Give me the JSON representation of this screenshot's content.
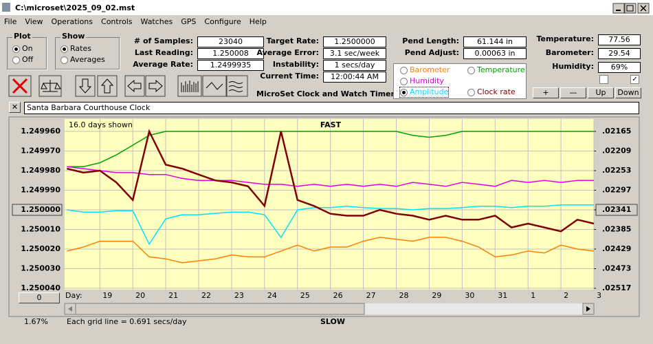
{
  "window": {
    "title": "C:\\microset\\2025_09_02.mst"
  },
  "menu": [
    "File",
    "View",
    "Operations",
    "Controls",
    "Watches",
    "GPS",
    "Configure",
    "Help"
  ],
  "plot_group": {
    "title": "Plot",
    "options": [
      "On",
      "Off"
    ],
    "selected": 0
  },
  "show_group": {
    "title": "Show",
    "options": [
      "Rates",
      "Averages"
    ],
    "selected": 0
  },
  "fields": [
    {
      "label": "# of Samples:",
      "value": "23040"
    },
    {
      "label": "Last Reading:",
      "value": "1.250008"
    },
    {
      "label": "Average Rate:",
      "value": "1.2499935"
    },
    {
      "label": "Target Rate:",
      "value": "1.2500000"
    },
    {
      "label": "Average Error:",
      "value": "3.1 sec/week"
    },
    {
      "label": "Instability:",
      "value": "1 secs/day"
    },
    {
      "label": "Current Time:",
      "value": "12:00:44 AM"
    },
    {
      "label": "Pend Length:",
      "value": "61.144 in"
    },
    {
      "label": "Pend Adjust:",
      "value": "0.00063 in"
    },
    {
      "label": "Temperature:",
      "value": "77.56"
    },
    {
      "label": "Barometer:",
      "value": "29.54"
    },
    {
      "label": "Humidity:",
      "value": "69%"
    }
  ],
  "app_name": "MicroSet Clock and Watch Timer",
  "buttons": [
    "+",
    "—",
    "Up",
    "Down"
  ],
  "description": "Santa Barbara Courthouse Clock",
  "chart_data": {
    "type": "line",
    "days_shown": "16.0 days shown",
    "top_label": "FAST",
    "bottom_label": "SLOW",
    "x_label": "Day:",
    "percent": "1.67%",
    "grid_note": "Each grid line = 0.691 secs/day",
    "offset_button": "0",
    "selected_series": 3,
    "grid": true,
    "x": [
      18,
      18.5,
      19,
      19.5,
      20,
      20.5,
      21,
      21.5,
      22,
      22.5,
      23,
      23.5,
      24,
      24.5,
      25,
      25.5,
      26,
      26.5,
      27,
      27.5,
      28,
      28.5,
      29,
      29.5,
      30,
      30.5,
      31,
      31.5,
      32,
      32.5,
      33,
      33.5,
      34
    ],
    "xlim": [
      17.93,
      34
    ],
    "xticks": [
      19,
      20,
      21,
      22,
      23,
      24,
      25,
      26,
      27,
      28,
      29,
      30,
      31,
      {
        "value": 32,
        "label": "1"
      },
      {
        "value": 33,
        "label": "2"
      },
      {
        "value": 34,
        "label": "3"
      }
    ],
    "ylim": [
      1.25004,
      1.24996
    ],
    "yticks": [
      {
        "value": 1.24996,
        "label": "1.249960"
      },
      {
        "value": 1.24997,
        "label": "1.249970"
      },
      {
        "value": 1.24998,
        "label": "1.249980"
      },
      {
        "value": 1.24999,
        "label": "1.249990"
      },
      {
        "value": 1.25,
        "label": "1.250000"
      },
      {
        "value": 1.25001,
        "label": "1.250010"
      },
      {
        "value": 1.25002,
        "label": "1.250020"
      },
      {
        "value": 1.25003,
        "label": "1.250030"
      },
      {
        "value": 1.25004,
        "label": "1.250040"
      }
    ],
    "y2lim": [
      0.02517,
      0.02165
    ],
    "y2ticks": [
      {
        "value": 0.02165,
        "label": ".02165"
      },
      {
        "value": 0.02209,
        "label": ".02209"
      },
      {
        "value": 0.02253,
        "label": ".02253"
      },
      {
        "value": 0.02297,
        "label": ".02297"
      },
      {
        "value": 0.02341,
        "label": ".02341"
      },
      {
        "value": 0.02385,
        "label": ".02385"
      },
      {
        "value": 0.02429,
        "label": ".02429"
      },
      {
        "value": 0.02473,
        "label": ".02473"
      },
      {
        "value": 0.02517,
        "label": ".02517"
      }
    ],
    "series": [
      {
        "name": "Barometer",
        "color": "#ff8000",
        "values": [
          1.250021,
          1.250019,
          1.250016,
          1.250016,
          1.250016,
          1.250024,
          1.250025,
          1.250027,
          1.250026,
          1.250025,
          1.250023,
          1.250024,
          1.250024,
          1.250021,
          1.250018,
          1.250021,
          1.250019,
          1.250019,
          1.250016,
          1.250014,
          1.250015,
          1.250016,
          1.250014,
          1.250014,
          1.250016,
          1.250019,
          1.250024,
          1.250023,
          1.250021,
          1.250022,
          1.250018,
          1.25002,
          1.250021
        ]
      },
      {
        "name": "Temperature",
        "color": "#00a000",
        "values": [
          1.249978,
          1.249978,
          1.249976,
          1.249972,
          1.249967,
          1.249962,
          1.24996,
          1.24996,
          1.24996,
          1.24996,
          1.24996,
          1.24996,
          1.24996,
          1.24996,
          1.24996,
          1.24996,
          1.24996,
          1.24996,
          1.24996,
          1.24996,
          1.24996,
          1.249962,
          1.249963,
          1.249962,
          1.24996,
          1.24996,
          1.24996,
          1.24996,
          1.24996,
          1.24996,
          1.24996,
          1.24996,
          1.24996
        ]
      },
      {
        "name": "Humidity",
        "color": "#e000e0",
        "values": [
          1.249978,
          1.249979,
          1.24998,
          1.249981,
          1.249981,
          1.249982,
          1.249982,
          1.249984,
          1.249985,
          1.249985,
          1.249985,
          1.249986,
          1.249987,
          1.249987,
          1.249988,
          1.249987,
          1.249988,
          1.249987,
          1.249988,
          1.249987,
          1.249988,
          1.249986,
          1.249987,
          1.249988,
          1.249986,
          1.249987,
          1.249988,
          1.249985,
          1.249986,
          1.249985,
          1.249986,
          1.249985,
          1.249985
        ]
      },
      {
        "name": "Amplitude",
        "color": "#00e0ff",
        "axis": "y2",
        "values": [
          0.02341,
          0.02346,
          0.02346,
          0.02343,
          0.02343,
          0.02418,
          0.02361,
          0.02352,
          0.02352,
          0.02349,
          0.02346,
          0.02346,
          0.02352,
          0.02403,
          0.02341,
          0.02336,
          0.02336,
          0.02333,
          0.02336,
          0.02338,
          0.02338,
          0.02341,
          0.02338,
          0.02338,
          0.02336,
          0.02333,
          0.02333,
          0.02336,
          0.02333,
          0.02333,
          0.0233,
          0.0233,
          0.0233
        ]
      },
      {
        "name": "Clock rate",
        "color": "#800000",
        "values": [
          1.249979,
          1.249981,
          1.24998,
          1.249986,
          1.249995,
          1.24996,
          1.249977,
          1.249979,
          1.249982,
          1.249985,
          1.249986,
          1.249988,
          1.249998,
          1.24996,
          1.249995,
          1.249998,
          1.250002,
          1.250003,
          1.250003,
          1.25,
          1.250002,
          1.250003,
          1.250005,
          1.250003,
          1.250005,
          1.250005,
          1.250003,
          1.250009,
          1.250007,
          1.250009,
          1.250011,
          1.250005,
          1.250007
        ]
      }
    ]
  }
}
